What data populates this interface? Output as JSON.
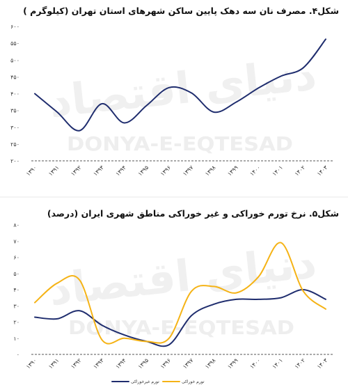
{
  "watermark": {
    "persian": "دنیای اقتصاد",
    "latin": "DONYA-E-EQTESAD"
  },
  "chart_data": [
    {
      "type": "line",
      "smooth": true,
      "title": "شکل۴. مصرف نان سه دهک پایین ساکن شهرهای استان تهران (کیلوگرم )",
      "categories": [
        "۱۳۹۰",
        "۱۳۹۱",
        "۱۳۹۲",
        "۱۳۹۳",
        "۱۳۹۴",
        "۱۳۹۵",
        "۱۳۹۶",
        "۱۳۹۷",
        "۱۳۹۸",
        "۱۳۹۹",
        "۱۴۰۰",
        "۱۴۰۱",
        "۱۴۰۲",
        "۱۴۰۳"
      ],
      "series": [
        {
          "color": "#1f2d6e",
          "values": [
            400,
            345,
            290,
            370,
            313,
            365,
            418,
            402,
            345,
            375,
            417,
            452,
            477,
            562
          ]
        }
      ],
      "ylim": [
        200,
        600
      ],
      "ytick_labels": [
        "۲۰۰",
        "۲۵۰",
        "۳۰۰",
        "۳۵۰",
        "۴۰۰",
        "۴۵۰",
        "۵۰۰",
        "۵۵۰",
        "۶۰۰"
      ],
      "grid": false,
      "legend": "none"
    },
    {
      "type": "line",
      "smooth": true,
      "title": "شکل۵. نرخ تورم خوراکی و غیر خوراکی مناطق شهری ایران (درصد)",
      "categories": [
        "۱۳۹۰",
        "۱۳۹۱",
        "۱۳۹۲",
        "۱۳۹۳",
        "۱۳۹۴",
        "۱۳۹۵",
        "۱۳۹۶",
        "۱۳۹۷",
        "۱۳۹۸",
        "۱۳۹۹",
        "۱۴۰۰",
        "۱۴۰۱",
        "۱۴۰۲",
        "۱۴۰۳"
      ],
      "series": [
        {
          "name": "تورم غیرخوراکی",
          "color": "#1f2d6e",
          "values": [
            23,
            22,
            27,
            18,
            12,
            8,
            6,
            24,
            31,
            34,
            34,
            35,
            40,
            34
          ]
        },
        {
          "name": "تورم خوراکی",
          "color": "#f5b316",
          "values": [
            32,
            44,
            46,
            9,
            10,
            8,
            10,
            39,
            42,
            38,
            48,
            69,
            39,
            28
          ]
        }
      ],
      "ylim": [
        0,
        80
      ],
      "ytick_labels": [
        "۰",
        "۱۰",
        "۲۰",
        "۳۰",
        "۴۰",
        "۵۰",
        "۶۰",
        "۷۰",
        "۸۰"
      ],
      "grid": false,
      "legend": "bottom"
    }
  ]
}
